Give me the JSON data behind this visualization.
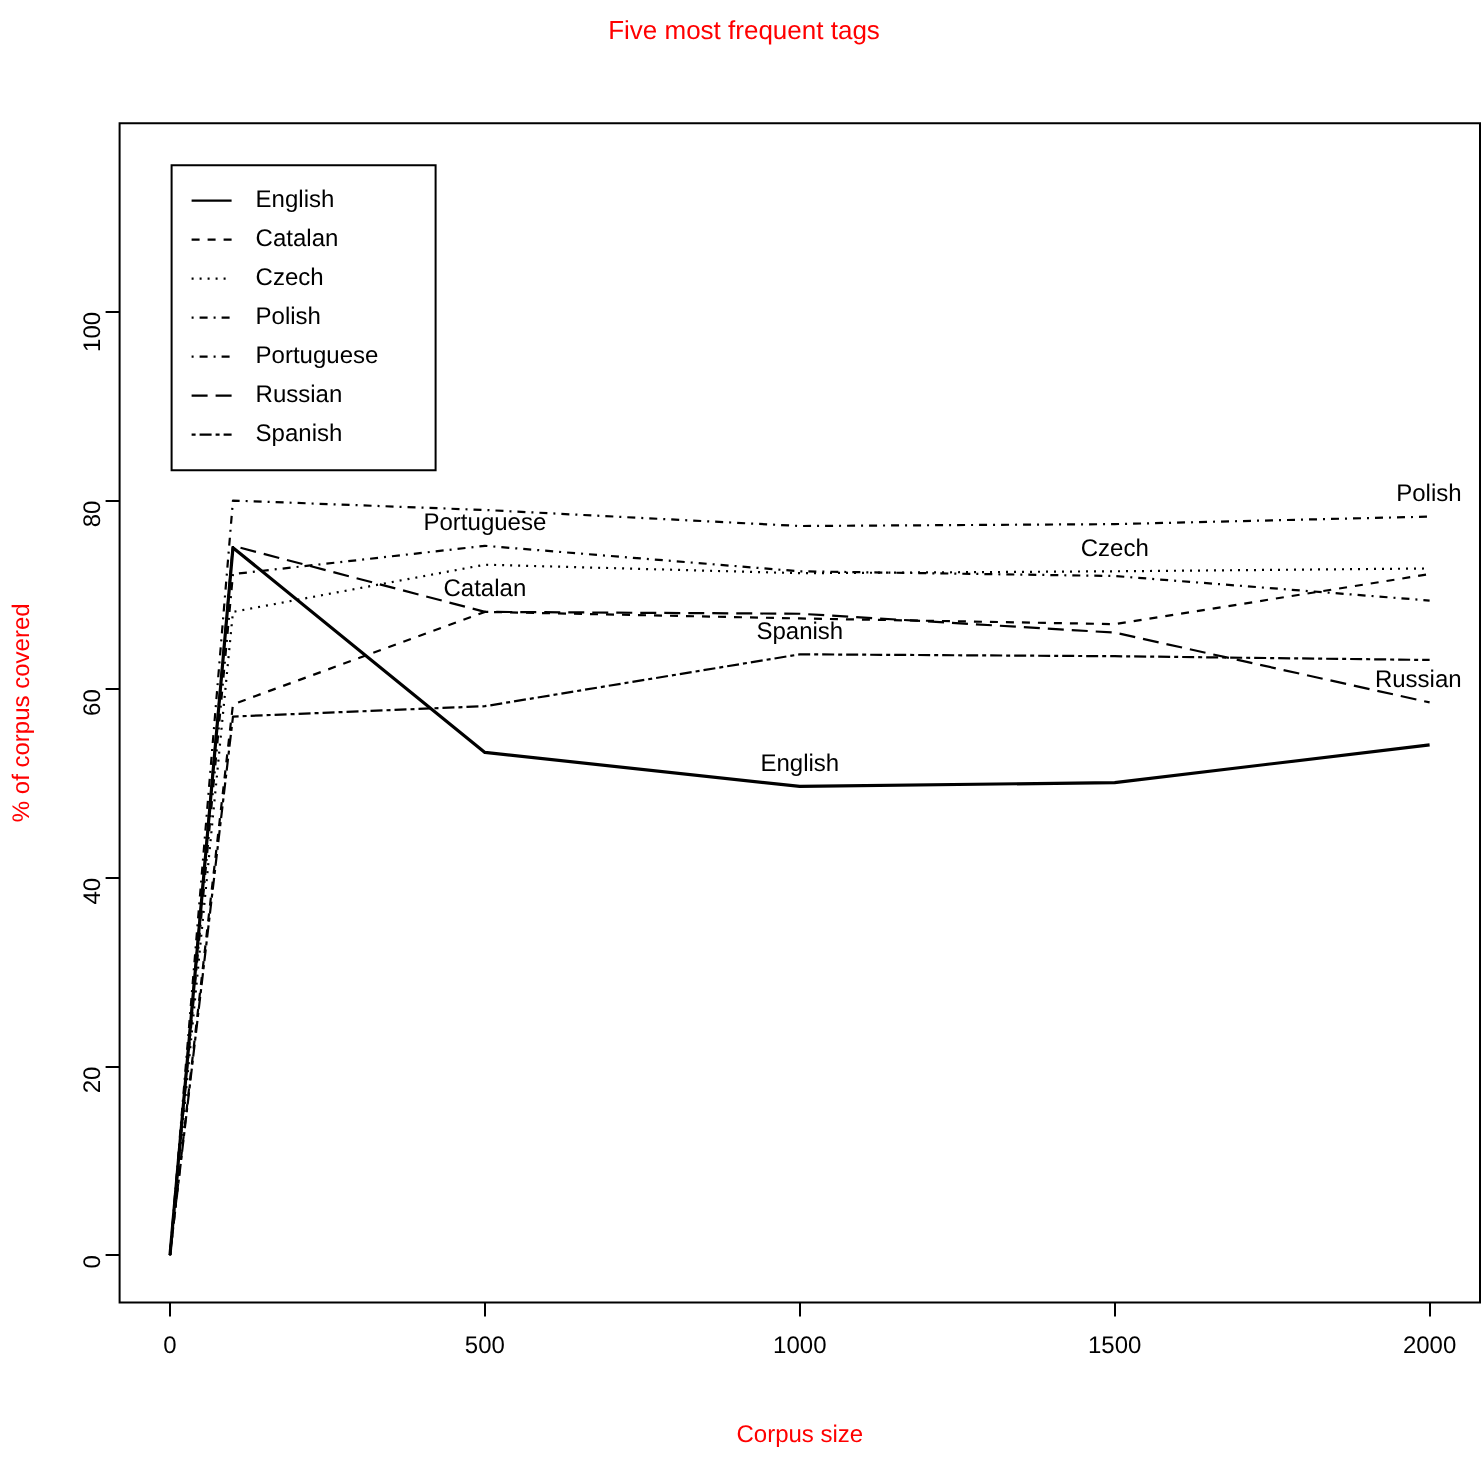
{
  "chart_data": {
    "type": "line",
    "title": "Five most frequent tags",
    "xlabel": "Corpus size",
    "ylabel": "% of corpus covered",
    "x": [
      0,
      100,
      500,
      1000,
      1500,
      2000
    ],
    "xlim": [
      -80,
      2080
    ],
    "xticks": [
      0,
      500,
      1000,
      1500,
      2000
    ],
    "ylim": [
      -5,
      120
    ],
    "yticks": [
      0,
      20,
      40,
      60,
      80,
      100
    ],
    "grid": false,
    "legend": "top left",
    "marker": "none",
    "series": [
      {
        "name": "English",
        "color": "#000000",
        "line_style": "solid",
        "values": [
          0,
          75,
          53.3,
          49.7,
          50.1,
          54.1
        ]
      },
      {
        "name": "Catalan",
        "color": "#000000",
        "line_style": "dashed",
        "values": [
          0,
          58.4,
          68.2,
          67.5,
          66.9,
          72.2
        ]
      },
      {
        "name": "Czech",
        "color": "#000000",
        "line_style": "dotted",
        "values": [
          0,
          68.2,
          73.2,
          72.3,
          72.5,
          72.8
        ]
      },
      {
        "name": "Polish",
        "color": "#000000",
        "line_style": "dashdot",
        "values": [
          0,
          80,
          79,
          77.3,
          77.5,
          78.3
        ]
      },
      {
        "name": "Portuguese",
        "color": "#000000",
        "line_style": "dashdot",
        "values": [
          0,
          72.2,
          75.2,
          72.5,
          72,
          69.4
        ]
      },
      {
        "name": "Russian",
        "color": "#000000",
        "line_style": "longdash",
        "values": [
          0,
          75.2,
          68.2,
          68,
          66,
          58.6
        ]
      },
      {
        "name": "Spanish",
        "color": "#000000",
        "line_style": "twodash",
        "values": [
          0,
          57.1,
          58.2,
          63.7,
          63.5,
          63.1
        ]
      }
    ],
    "annotations": [
      {
        "text": "Portuguese",
        "x": 500,
        "y": 75.2
      },
      {
        "text": "Catalan",
        "x": 500,
        "y": 68.2
      },
      {
        "text": "English",
        "x": 1000,
        "y": 49.7
      },
      {
        "text": "Spanish",
        "x": 1000,
        "y": 63.7
      },
      {
        "text": "Czech",
        "x": 1500,
        "y": 72.5
      },
      {
        "text": "Polish",
        "x": 2000,
        "y": 78.3
      },
      {
        "text": "Russian",
        "x": 2000,
        "y": 58.6
      }
    ]
  }
}
